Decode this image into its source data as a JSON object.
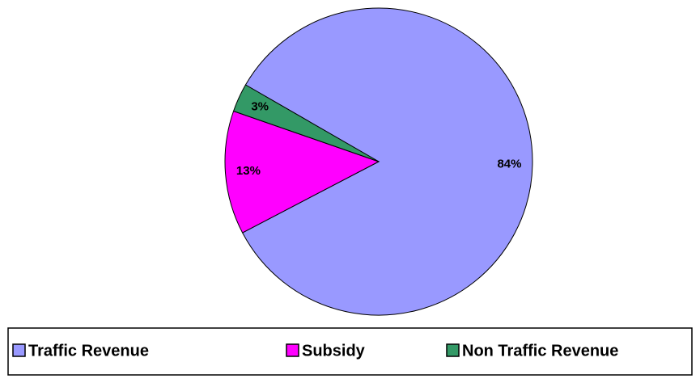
{
  "chart_data": {
    "type": "pie",
    "categories": [
      "Traffic Revenue",
      "Subsidy",
      "Non Traffic Revenue"
    ],
    "values": [
      84,
      13,
      3
    ],
    "value_labels": [
      "84%",
      "13%",
      "3%"
    ],
    "colors": [
      "#9999ff",
      "#ff00ff",
      "#339966"
    ],
    "legend": "bottom"
  }
}
